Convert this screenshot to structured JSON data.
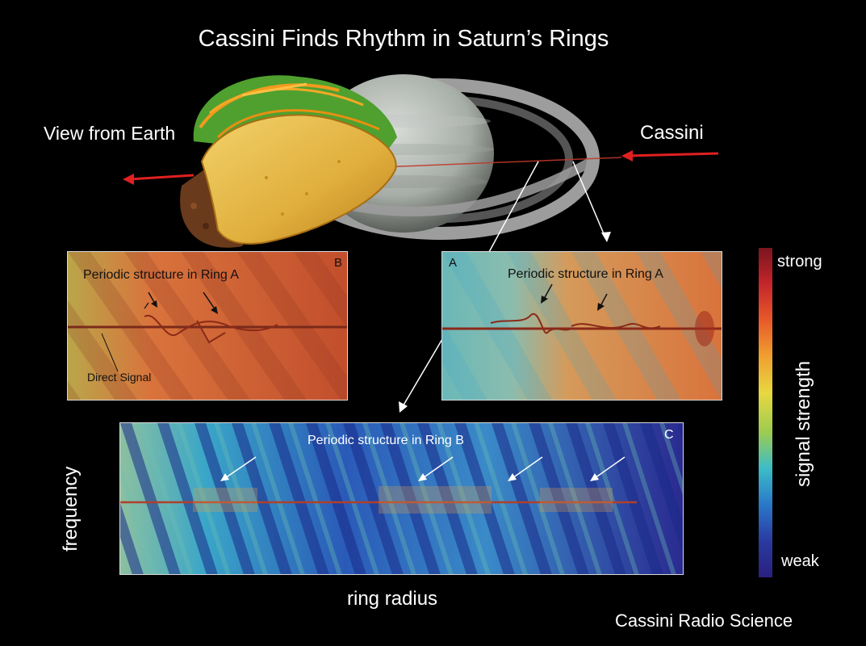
{
  "title": "Cassini Finds Rhythm in Saturn’s Rings",
  "labels": {
    "view_from_earth": "View from Earth",
    "cassini": "Cassini",
    "frequency": "frequency",
    "ring_radius": "ring radius",
    "credit": "Cassini Radio Science"
  },
  "panels": {
    "b": {
      "letter": "B",
      "annotation": "Periodic structure in Ring A",
      "direct_signal": "Direct Signal"
    },
    "a": {
      "letter": "A",
      "annotation": "Periodic structure in Ring A"
    },
    "c": {
      "letter": "C",
      "annotation": "Periodic structure in Ring B"
    }
  },
  "colorbar": {
    "strong": "strong",
    "weak": "weak",
    "axis_label": "signal strength",
    "colors": [
      "#7a1420",
      "#c4262a",
      "#e85a2a",
      "#f0a030",
      "#e8d840",
      "#9ccc50",
      "#3cbcc8",
      "#2a78c8",
      "#2a3aa0",
      "#2a2080"
    ]
  },
  "colors": {
    "background": "#000000",
    "signal_line": "#c0392b",
    "ring_a_texture": "#d9733c",
    "ring_b_texture": "#2a3aa0"
  }
}
